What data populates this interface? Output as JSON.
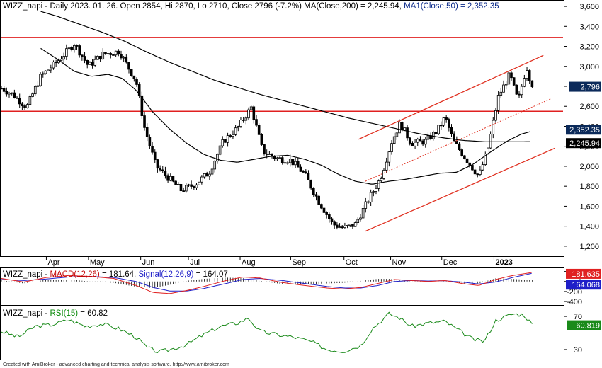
{
  "main": {
    "title_parts": [
      {
        "text": "WIZZ_napi - Daily 2023. 01. 26. Open 2854, Hi 2870, Lo 2710, Close 2796 (-7.2%) ",
        "color": "#000000"
      },
      {
        "text": "MA(Close,200) = 2,245.94, ",
        "color": "#000000"
      },
      {
        "text": "MA1(Close,50) = 2,352.35",
        "color": "#0b2a8a"
      }
    ],
    "y_ticks": [
      1200,
      1400,
      1600,
      1800,
      2000,
      2200,
      2400,
      2600,
      2800,
      3000,
      3200,
      3400,
      3600
    ],
    "y_tick_labels": [
      "1,200",
      "1,400",
      "1,600",
      "1,800",
      "2,000",
      "2,200",
      "2,400",
      "2,600",
      "2,800",
      "3,000",
      "3,200",
      "3,400",
      "3,600"
    ],
    "ylim": [
      1100,
      3650
    ],
    "last_price_label": "2,796",
    "ma50_label": "2,352.35",
    "ma200_label": "2,245.94"
  },
  "x_axis": {
    "labels": [
      {
        "text": "Apr",
        "t": 0.08
      },
      {
        "text": "May",
        "t": 0.155
      },
      {
        "text": "Jun",
        "t": 0.248
      },
      {
        "text": "Jul",
        "t": 0.333
      },
      {
        "text": "Aug",
        "t": 0.425
      },
      {
        "text": "Sep",
        "t": 0.515
      },
      {
        "text": "Oct",
        "t": 0.61
      },
      {
        "text": "Nov",
        "t": 0.693
      },
      {
        "text": "Dec",
        "t": 0.784
      },
      {
        "text": "2023",
        "t": 0.877
      }
    ]
  },
  "macd": {
    "title_parts": [
      {
        "text": "WIZZ_napi - ",
        "color": "#000000"
      },
      {
        "text": "MACD(12,26)",
        "color": "#c00000"
      },
      {
        "text": " = 181.64, ",
        "color": "#000000"
      },
      {
        "text": "Signal(12,26,9)",
        "color": "#1f1fc8"
      },
      {
        "text": " = 164.07",
        "color": "#000000"
      }
    ],
    "y_ticks": [
      -400,
      -200,
      0,
      200
    ],
    "y_tick_labels": [
      "-400",
      "-200",
      "0",
      "200"
    ],
    "ylim": [
      -470,
      280
    ],
    "macd_label": "181.635",
    "signal_label": "164.068",
    "macd_color": "#e02020",
    "signal_color": "#1f1fc8"
  },
  "rsi": {
    "title_parts": [
      {
        "text": "WIZZ_napi - ",
        "color": "#000000"
      },
      {
        "text": "RSI(15)",
        "color": "#0a8a0a"
      },
      {
        "text": " = 60.82",
        "color": "#000000"
      }
    ],
    "y_ticks": [
      30,
      70
    ],
    "y_tick_labels": [
      "30",
      "70"
    ],
    "ylim": [
      18,
      82
    ],
    "rsi_label": "60.819",
    "color": "#1a8a1a"
  },
  "footer": "Created with AmiBroker - advanced charting and technical analysis software. http://www.amibroker.com",
  "chart_data": {
    "type": "line",
    "title": "WIZZ_napi - Daily 2023. 01. 26. Open 2854, Hi 2870, Lo 2710, Close 2796 (-7.2%)",
    "series": [
      {
        "name": "MA(Close,200)",
        "last": 2245.94
      },
      {
        "name": "MA1(Close,50)",
        "last": 2352.35
      }
    ],
    "approx_price_path": [
      [
        0.0,
        2780
      ],
      [
        0.02,
        2720
      ],
      [
        0.045,
        2590
      ],
      [
        0.07,
        2900
      ],
      [
        0.1,
        3050
      ],
      [
        0.13,
        3230
      ],
      [
        0.155,
        3000
      ],
      [
        0.18,
        3120
      ],
      [
        0.21,
        3150
      ],
      [
        0.24,
        2850
      ],
      [
        0.255,
        2380
      ],
      [
        0.275,
        2000
      ],
      [
        0.3,
        1870
      ],
      [
        0.32,
        1760
      ],
      [
        0.345,
        1820
      ],
      [
        0.37,
        1940
      ],
      [
        0.395,
        2250
      ],
      [
        0.42,
        2380
      ],
      [
        0.445,
        2590
      ],
      [
        0.465,
        2150
      ],
      [
        0.49,
        2080
      ],
      [
        0.515,
        2060
      ],
      [
        0.54,
        1920
      ],
      [
        0.565,
        1650
      ],
      [
        0.59,
        1420
      ],
      [
        0.61,
        1380
      ],
      [
        0.63,
        1420
      ],
      [
        0.655,
        1680
      ],
      [
        0.675,
        1880
      ],
      [
        0.695,
        2250
      ],
      [
        0.71,
        2430
      ],
      [
        0.73,
        2230
      ],
      [
        0.755,
        2250
      ],
      [
        0.775,
        2350
      ],
      [
        0.79,
        2490
      ],
      [
        0.805,
        2250
      ],
      [
        0.83,
        2050
      ],
      [
        0.85,
        1900
      ],
      [
        0.865,
        2150
      ],
      [
        0.885,
        2700
      ],
      [
        0.905,
        2920
      ],
      [
        0.92,
        2650
      ],
      [
        0.935,
        3000
      ],
      [
        0.945,
        2796
      ]
    ],
    "ma50_path": [
      [
        0.07,
        3180
      ],
      [
        0.1,
        3070
      ],
      [
        0.13,
        2950
      ],
      [
        0.16,
        2900
      ],
      [
        0.19,
        2920
      ],
      [
        0.215,
        2880
      ],
      [
        0.24,
        2760
      ],
      [
        0.27,
        2540
      ],
      [
        0.3,
        2370
      ],
      [
        0.33,
        2230
      ],
      [
        0.36,
        2120
      ],
      [
        0.39,
        2060
      ],
      [
        0.42,
        2040
      ],
      [
        0.45,
        2070
      ],
      [
        0.48,
        2100
      ],
      [
        0.51,
        2110
      ],
      [
        0.54,
        2070
      ],
      [
        0.57,
        2010
      ],
      [
        0.6,
        1920
      ],
      [
        0.63,
        1850
      ],
      [
        0.66,
        1820
      ],
      [
        0.69,
        1850
      ],
      [
        0.72,
        1870
      ],
      [
        0.75,
        1900
      ],
      [
        0.78,
        1930
      ],
      [
        0.81,
        1940
      ],
      [
        0.84,
        2020
      ],
      [
        0.87,
        2140
      ],
      [
        0.9,
        2250
      ],
      [
        0.925,
        2320
      ],
      [
        0.945,
        2352
      ]
    ],
    "ma200_path": [
      [
        0.07,
        3550
      ],
      [
        0.1,
        3500
      ],
      [
        0.14,
        3420
      ],
      [
        0.18,
        3340
      ],
      [
        0.22,
        3250
      ],
      [
        0.26,
        3140
      ],
      [
        0.3,
        3040
      ],
      [
        0.34,
        2950
      ],
      [
        0.38,
        2860
      ],
      [
        0.42,
        2790
      ],
      [
        0.46,
        2720
      ],
      [
        0.5,
        2660
      ],
      [
        0.54,
        2600
      ],
      [
        0.58,
        2540
      ],
      [
        0.62,
        2480
      ],
      [
        0.66,
        2430
      ],
      [
        0.7,
        2380
      ],
      [
        0.74,
        2330
      ],
      [
        0.78,
        2290
      ],
      [
        0.82,
        2260
      ],
      [
        0.86,
        2245
      ],
      [
        0.9,
        2245
      ],
      [
        0.945,
        2246
      ]
    ],
    "horizontal_lines": [
      3290,
      2550
    ],
    "trend_channel": {
      "upper": [
        [
          0.636,
          2270
        ],
        [
          0.965,
          3110
        ]
      ],
      "middle_dashed": [
        [
          0.648,
          1850
        ],
        [
          0.98,
          2680
        ]
      ],
      "lower": [
        [
          0.648,
          1350
        ],
        [
          0.985,
          2180
        ]
      ]
    },
    "macd_path": [
      [
        0.0,
        60
      ],
      [
        0.04,
        -10
      ],
      [
        0.08,
        80
      ],
      [
        0.12,
        120
      ],
      [
        0.16,
        100
      ],
      [
        0.2,
        60
      ],
      [
        0.24,
        -80
      ],
      [
        0.27,
        -220
      ],
      [
        0.3,
        -240
      ],
      [
        0.33,
        -180
      ],
      [
        0.36,
        -100
      ],
      [
        0.4,
        20
      ],
      [
        0.43,
        90
      ],
      [
        0.46,
        70
      ],
      [
        0.5,
        -20
      ],
      [
        0.54,
        -80
      ],
      [
        0.58,
        -130
      ],
      [
        0.61,
        -150
      ],
      [
        0.64,
        -120
      ],
      [
        0.67,
        -40
      ],
      [
        0.7,
        40
      ],
      [
        0.73,
        20
      ],
      [
        0.76,
        0
      ],
      [
        0.79,
        20
      ],
      [
        0.82,
        -40
      ],
      [
        0.85,
        -80
      ],
      [
        0.88,
        40
      ],
      [
        0.91,
        120
      ],
      [
        0.945,
        182
      ]
    ],
    "signal_path": [
      [
        0.0,
        40
      ],
      [
        0.04,
        20
      ],
      [
        0.08,
        50
      ],
      [
        0.12,
        90
      ],
      [
        0.16,
        100
      ],
      [
        0.2,
        80
      ],
      [
        0.24,
        0
      ],
      [
        0.27,
        -120
      ],
      [
        0.3,
        -190
      ],
      [
        0.33,
        -190
      ],
      [
        0.36,
        -140
      ],
      [
        0.4,
        -40
      ],
      [
        0.43,
        40
      ],
      [
        0.46,
        60
      ],
      [
        0.5,
        20
      ],
      [
        0.54,
        -40
      ],
      [
        0.58,
        -100
      ],
      [
        0.61,
        -130
      ],
      [
        0.64,
        -130
      ],
      [
        0.67,
        -80
      ],
      [
        0.7,
        0
      ],
      [
        0.73,
        20
      ],
      [
        0.76,
        10
      ],
      [
        0.79,
        15
      ],
      [
        0.82,
        -10
      ],
      [
        0.85,
        -50
      ],
      [
        0.88,
        -10
      ],
      [
        0.91,
        80
      ],
      [
        0.945,
        164
      ]
    ],
    "rsi_path": [
      [
        0.0,
        52
      ],
      [
        0.03,
        45
      ],
      [
        0.06,
        58
      ],
      [
        0.09,
        60
      ],
      [
        0.12,
        66
      ],
      [
        0.15,
        58
      ],
      [
        0.18,
        61
      ],
      [
        0.21,
        55
      ],
      [
        0.24,
        45
      ],
      [
        0.26,
        32
      ],
      [
        0.28,
        27
      ],
      [
        0.3,
        30
      ],
      [
        0.33,
        36
      ],
      [
        0.36,
        48
      ],
      [
        0.39,
        58
      ],
      [
        0.42,
        62
      ],
      [
        0.44,
        68
      ],
      [
        0.46,
        52
      ],
      [
        0.49,
        48
      ],
      [
        0.52,
        45
      ],
      [
        0.55,
        40
      ],
      [
        0.58,
        30
      ],
      [
        0.61,
        28
      ],
      [
        0.64,
        35
      ],
      [
        0.66,
        55
      ],
      [
        0.69,
        73
      ],
      [
        0.71,
        68
      ],
      [
        0.73,
        58
      ],
      [
        0.76,
        62
      ],
      [
        0.79,
        64
      ],
      [
        0.81,
        55
      ],
      [
        0.84,
        42
      ],
      [
        0.86,
        40
      ],
      [
        0.88,
        65
      ],
      [
        0.91,
        73
      ],
      [
        0.93,
        72
      ],
      [
        0.945,
        61
      ]
    ]
  }
}
